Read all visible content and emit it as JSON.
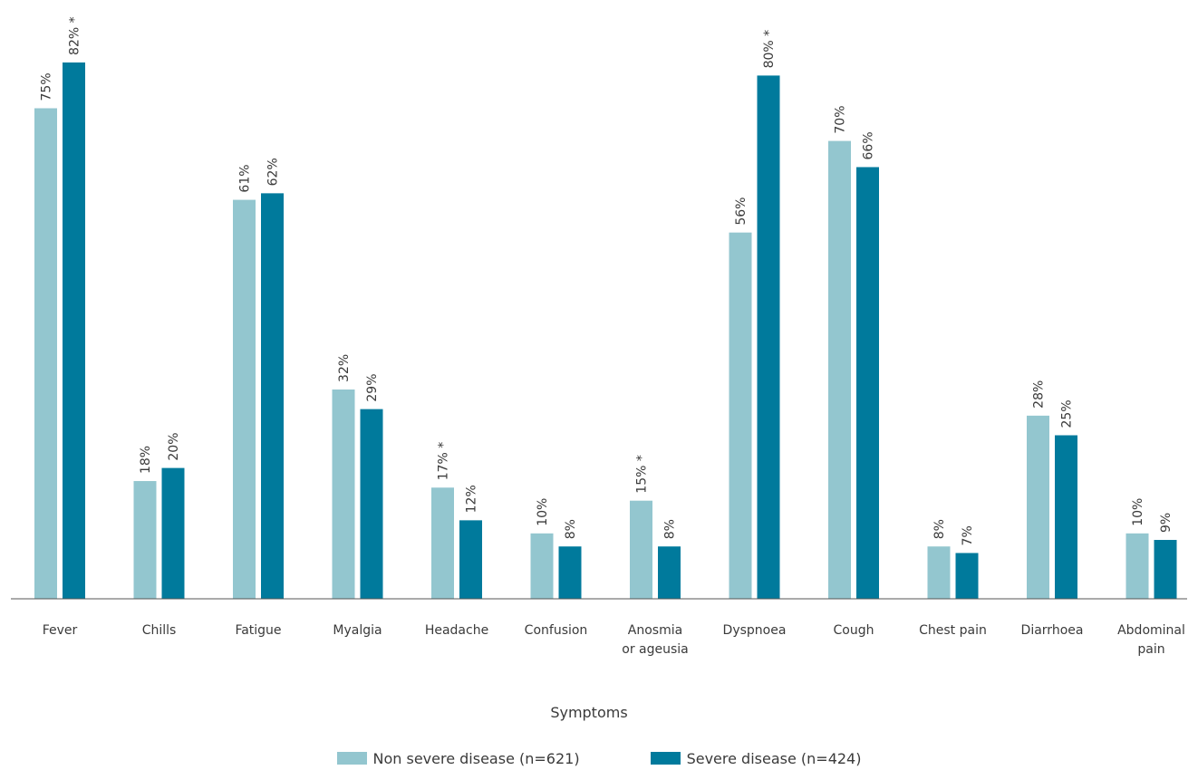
{
  "chart_data": {
    "type": "bar",
    "xlabel": "Symptoms",
    "ylabel": "",
    "grid": false,
    "legend_position": "bottom",
    "ylim": [
      0,
      85
    ],
    "categories": [
      [
        "Fever"
      ],
      [
        "Chills"
      ],
      [
        "Fatigue"
      ],
      [
        "Myalgia"
      ],
      [
        "Headache"
      ],
      [
        "Confusion"
      ],
      [
        "Anosmia",
        "or ageusia"
      ],
      [
        "Dyspnoea"
      ],
      [
        "Cough"
      ],
      [
        "Chest pain"
      ],
      [
        "Diarrhoea"
      ],
      [
        "Abdominal",
        "pain"
      ]
    ],
    "series": [
      {
        "name": "Non severe disease (n=621)",
        "color": "#93c6cf",
        "values": [
          75,
          18,
          61,
          32,
          17,
          10,
          15,
          56,
          70,
          8,
          28,
          10
        ],
        "labels": [
          "75%",
          "18%",
          "61%",
          "32%",
          "17% *",
          "10%",
          "15% *",
          "56%",
          "70%",
          "8%",
          "28%",
          "10%"
        ]
      },
      {
        "name": "Severe disease (n=424)",
        "color": "#007a9c",
        "values": [
          82,
          20,
          62,
          29,
          12,
          8,
          8,
          80,
          66,
          7,
          25,
          9
        ],
        "labels": [
          "82% *",
          "20%",
          "62%",
          "29%",
          "12%",
          "8%",
          "8%",
          "80% *",
          "66%",
          "7%",
          "25%",
          "9%"
        ]
      }
    ]
  }
}
